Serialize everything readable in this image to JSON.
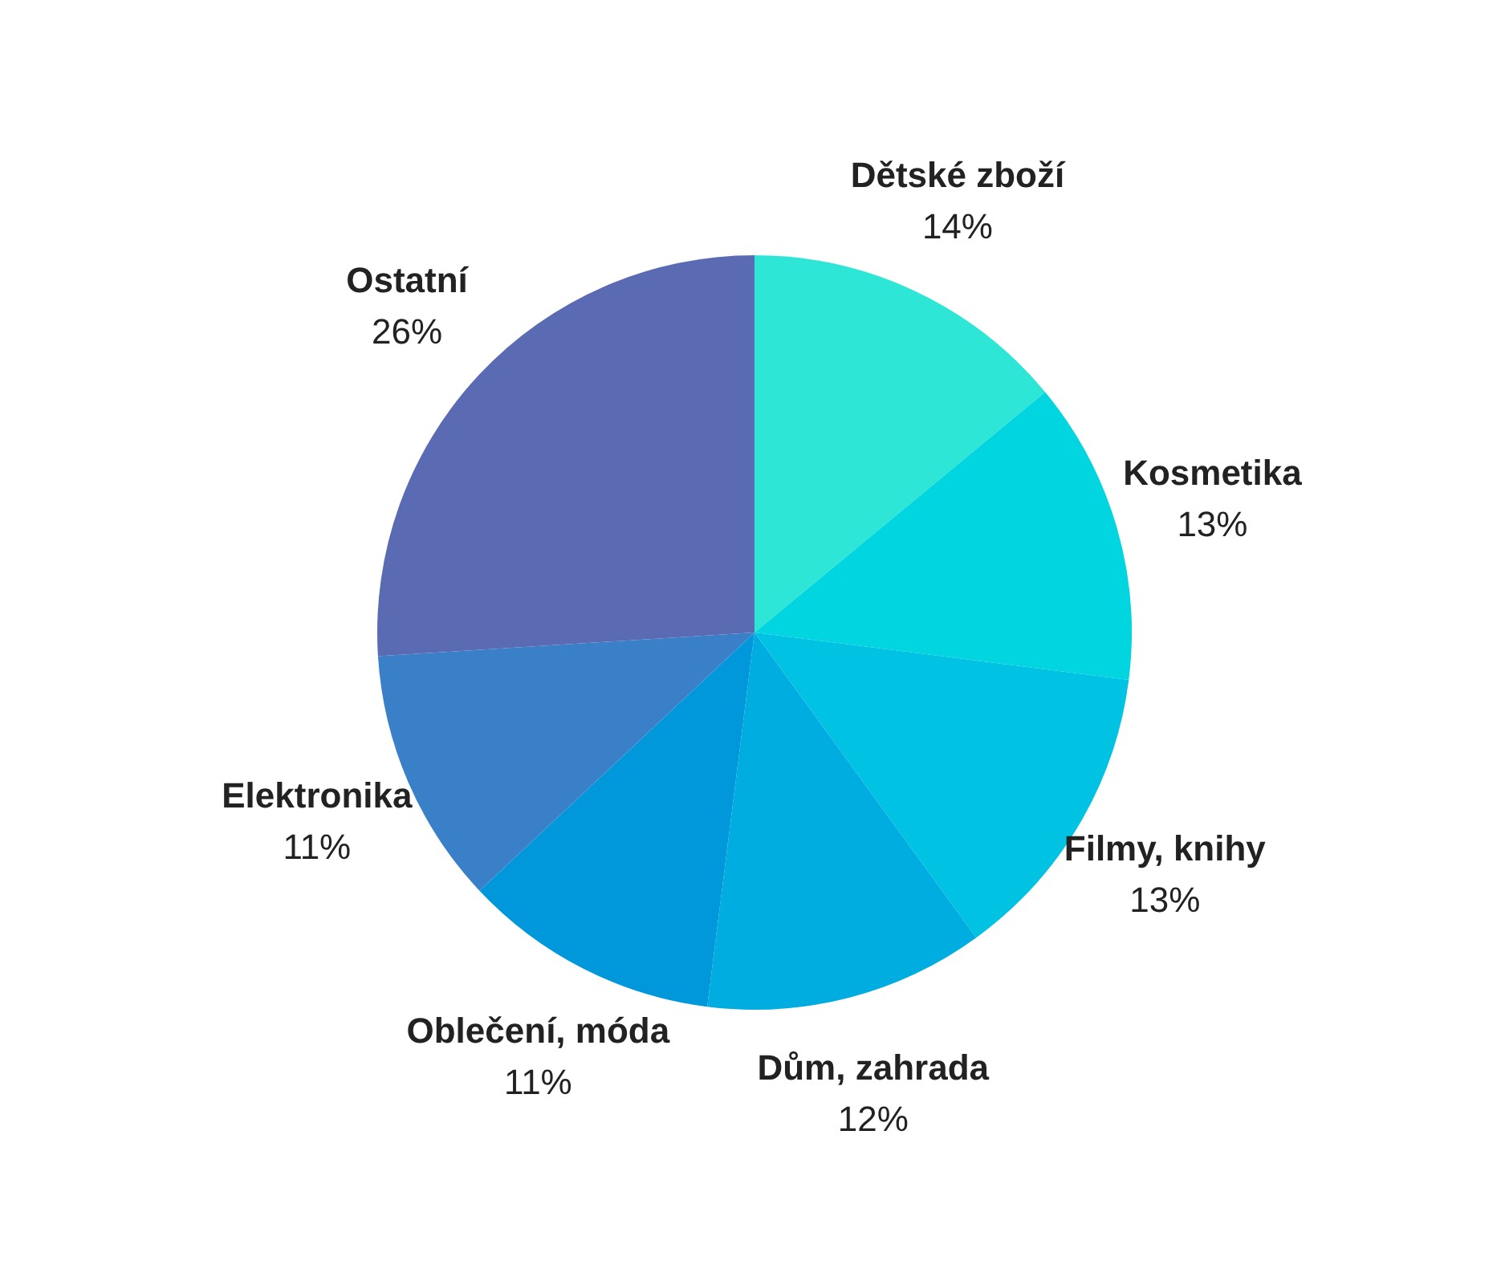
{
  "chart_data": {
    "type": "pie",
    "categories": [
      "Dětské zboží",
      "Kosmetika",
      "Filmy, knihy",
      "Dům, zahrada",
      "Oblečení, móda",
      "Elektronika",
      "Ostatní"
    ],
    "values": [
      14,
      13,
      13,
      12,
      11,
      11,
      26
    ],
    "value_labels": [
      "14%",
      "13%",
      "13%",
      "12%",
      "11%",
      "11%",
      "26%"
    ],
    "colors": [
      "#2ee6d6",
      "#00d5e0",
      "#00c2e3",
      "#00ade0",
      "#0098db",
      "#3a80c8",
      "#5a6bb4"
    ],
    "legend": false
  }
}
